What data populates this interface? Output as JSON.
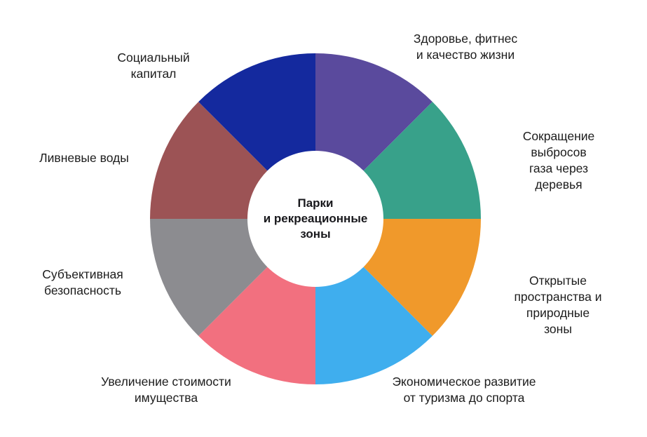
{
  "chart_data": {
    "type": "pie",
    "title": "",
    "donut": true,
    "center_label": "Парки\nи рекреационные\nзоны",
    "layout_hints": {
      "start_angle_deg": 0,
      "direction": "clockwise",
      "legend": "none",
      "labels": "outside"
    },
    "segments": [
      {
        "label": "Здоровье, фитнес\nи качество жизни",
        "value": 12.5,
        "color": "#5a4a9d"
      },
      {
        "label": "Сокращение выбросов\nгаза через деревья",
        "value": 12.5,
        "color": "#38a18a"
      },
      {
        "label": "Открытые пространства и\nприродные зоны",
        "value": 12.5,
        "color": "#f0992b"
      },
      {
        "label": "Экономическое развитие\nот туризма до спорта",
        "value": 12.5,
        "color": "#3faeee"
      },
      {
        "label": "Увеличение стоимости\nимущества",
        "value": 12.5,
        "color": "#f2707f"
      },
      {
        "label": "Субъективная\nбезопасность",
        "value": 12.5,
        "color": "#8c8c90"
      },
      {
        "label": "Ливневые воды",
        "value": 12.5,
        "color": "#9c5355"
      },
      {
        "label": "Социальный\nкапитал",
        "value": 12.5,
        "color": "#14299e"
      }
    ]
  }
}
